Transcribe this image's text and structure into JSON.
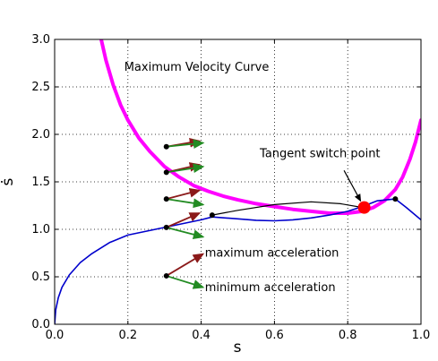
{
  "chart_data": {
    "type": "line",
    "xlabel": "s",
    "ylabel": "ṡ",
    "xlim": [
      0.0,
      1.0
    ],
    "ylim": [
      0.0,
      3.0
    ],
    "grid": true,
    "grid_style": "dotted",
    "x_ticks": [
      "0.0",
      "0.2",
      "0.4",
      "0.6",
      "0.8",
      "1.0"
    ],
    "y_ticks": [
      "0.0",
      "0.5",
      "1.0",
      "1.5",
      "2.0",
      "2.5",
      "3.0"
    ],
    "colors": {
      "max_velocity_curve": "#ff00ff",
      "trajectory": "#0000cc",
      "tangent_segment": "#000000",
      "max_accel_arrow": "#8b1a1a",
      "min_accel_arrow": "#228b22",
      "switch_point": "#ff0000"
    },
    "series": [
      {
        "id": "mvc",
        "x": [
          0.11,
          0.12,
          0.14,
          0.16,
          0.18,
          0.2,
          0.23,
          0.26,
          0.3,
          0.34,
          0.38,
          0.42,
          0.46,
          0.5,
          0.55,
          0.6,
          0.65,
          0.7,
          0.75,
          0.8,
          0.84,
          0.87,
          0.9,
          0.93,
          0.95,
          0.97,
          0.985,
          1.0
        ],
        "y": [
          3.36,
          3.12,
          2.78,
          2.52,
          2.31,
          2.15,
          1.96,
          1.82,
          1.66,
          1.55,
          1.46,
          1.4,
          1.35,
          1.31,
          1.27,
          1.24,
          1.21,
          1.19,
          1.17,
          1.17,
          1.19,
          1.23,
          1.3,
          1.42,
          1.55,
          1.74,
          1.92,
          2.15
        ]
      },
      {
        "id": "trajectory",
        "x": [
          0.0,
          0.003,
          0.01,
          0.02,
          0.04,
          0.07,
          0.1,
          0.15,
          0.2,
          0.25,
          0.3,
          0.35,
          0.4,
          0.43,
          0.5,
          0.55,
          0.6,
          0.65,
          0.7,
          0.75,
          0.8,
          0.84,
          0.88,
          0.93,
          0.96,
          1.0
        ],
        "y": [
          0.0,
          0.15,
          0.28,
          0.39,
          0.52,
          0.65,
          0.74,
          0.86,
          0.94,
          0.98,
          1.02,
          1.06,
          1.1,
          1.13,
          1.11,
          1.095,
          1.09,
          1.1,
          1.12,
          1.15,
          1.19,
          1.24,
          1.3,
          1.32,
          1.23,
          1.1
        ]
      },
      {
        "id": "tangent_segment",
        "x": [
          0.43,
          0.5,
          0.6,
          0.7,
          0.78,
          0.84
        ],
        "y": [
          1.15,
          1.2,
          1.26,
          1.29,
          1.27,
          1.23
        ]
      }
    ],
    "points": [
      {
        "x": 0.305,
        "y": 1.87
      },
      {
        "x": 0.305,
        "y": 1.6
      },
      {
        "x": 0.305,
        "y": 1.32
      },
      {
        "x": 0.305,
        "y": 1.02
      },
      {
        "x": 0.305,
        "y": 0.51
      },
      {
        "x": 0.43,
        "y": 1.15
      },
      {
        "x": 0.93,
        "y": 1.32
      }
    ],
    "switch_point": {
      "x": 0.845,
      "y": 1.23
    },
    "arrows": [
      {
        "kind": "max",
        "x": 0.305,
        "y": 1.87,
        "dx": 0.09,
        "dy": 0.06
      },
      {
        "kind": "min",
        "x": 0.305,
        "y": 1.87,
        "dx": 0.1,
        "dy": 0.04
      },
      {
        "kind": "max",
        "x": 0.305,
        "y": 1.6,
        "dx": 0.09,
        "dy": 0.08
      },
      {
        "kind": "min",
        "x": 0.305,
        "y": 1.6,
        "dx": 0.1,
        "dy": 0.06
      },
      {
        "kind": "max",
        "x": 0.305,
        "y": 1.32,
        "dx": 0.09,
        "dy": 0.09
      },
      {
        "kind": "min",
        "x": 0.305,
        "y": 1.32,
        "dx": 0.1,
        "dy": -0.06
      },
      {
        "kind": "max",
        "x": 0.305,
        "y": 1.02,
        "dx": 0.09,
        "dy": 0.15
      },
      {
        "kind": "min",
        "x": 0.305,
        "y": 1.02,
        "dx": 0.1,
        "dy": -0.1
      },
      {
        "kind": "max",
        "x": 0.305,
        "y": 0.51,
        "dx": 0.1,
        "dy": 0.23
      },
      {
        "kind": "min",
        "x": 0.305,
        "y": 0.51,
        "dx": 0.1,
        "dy": -0.12
      }
    ],
    "annotations": {
      "mvc_label": {
        "text": "Maximum Velocity Curve",
        "x": 0.19,
        "y": 2.67
      },
      "switch_label": {
        "text": "Tangent switch point",
        "x": 0.56,
        "y": 1.76
      },
      "max_label": {
        "text": "maximum acceleration",
        "x": 0.41,
        "y": 0.71
      },
      "min_label": {
        "text": "minimum acceleration",
        "x": 0.41,
        "y": 0.35
      },
      "switch_arrow_from": {
        "x": 0.79,
        "y": 1.62
      },
      "switch_arrow_to": {
        "x": 0.835,
        "y": 1.3
      }
    }
  }
}
